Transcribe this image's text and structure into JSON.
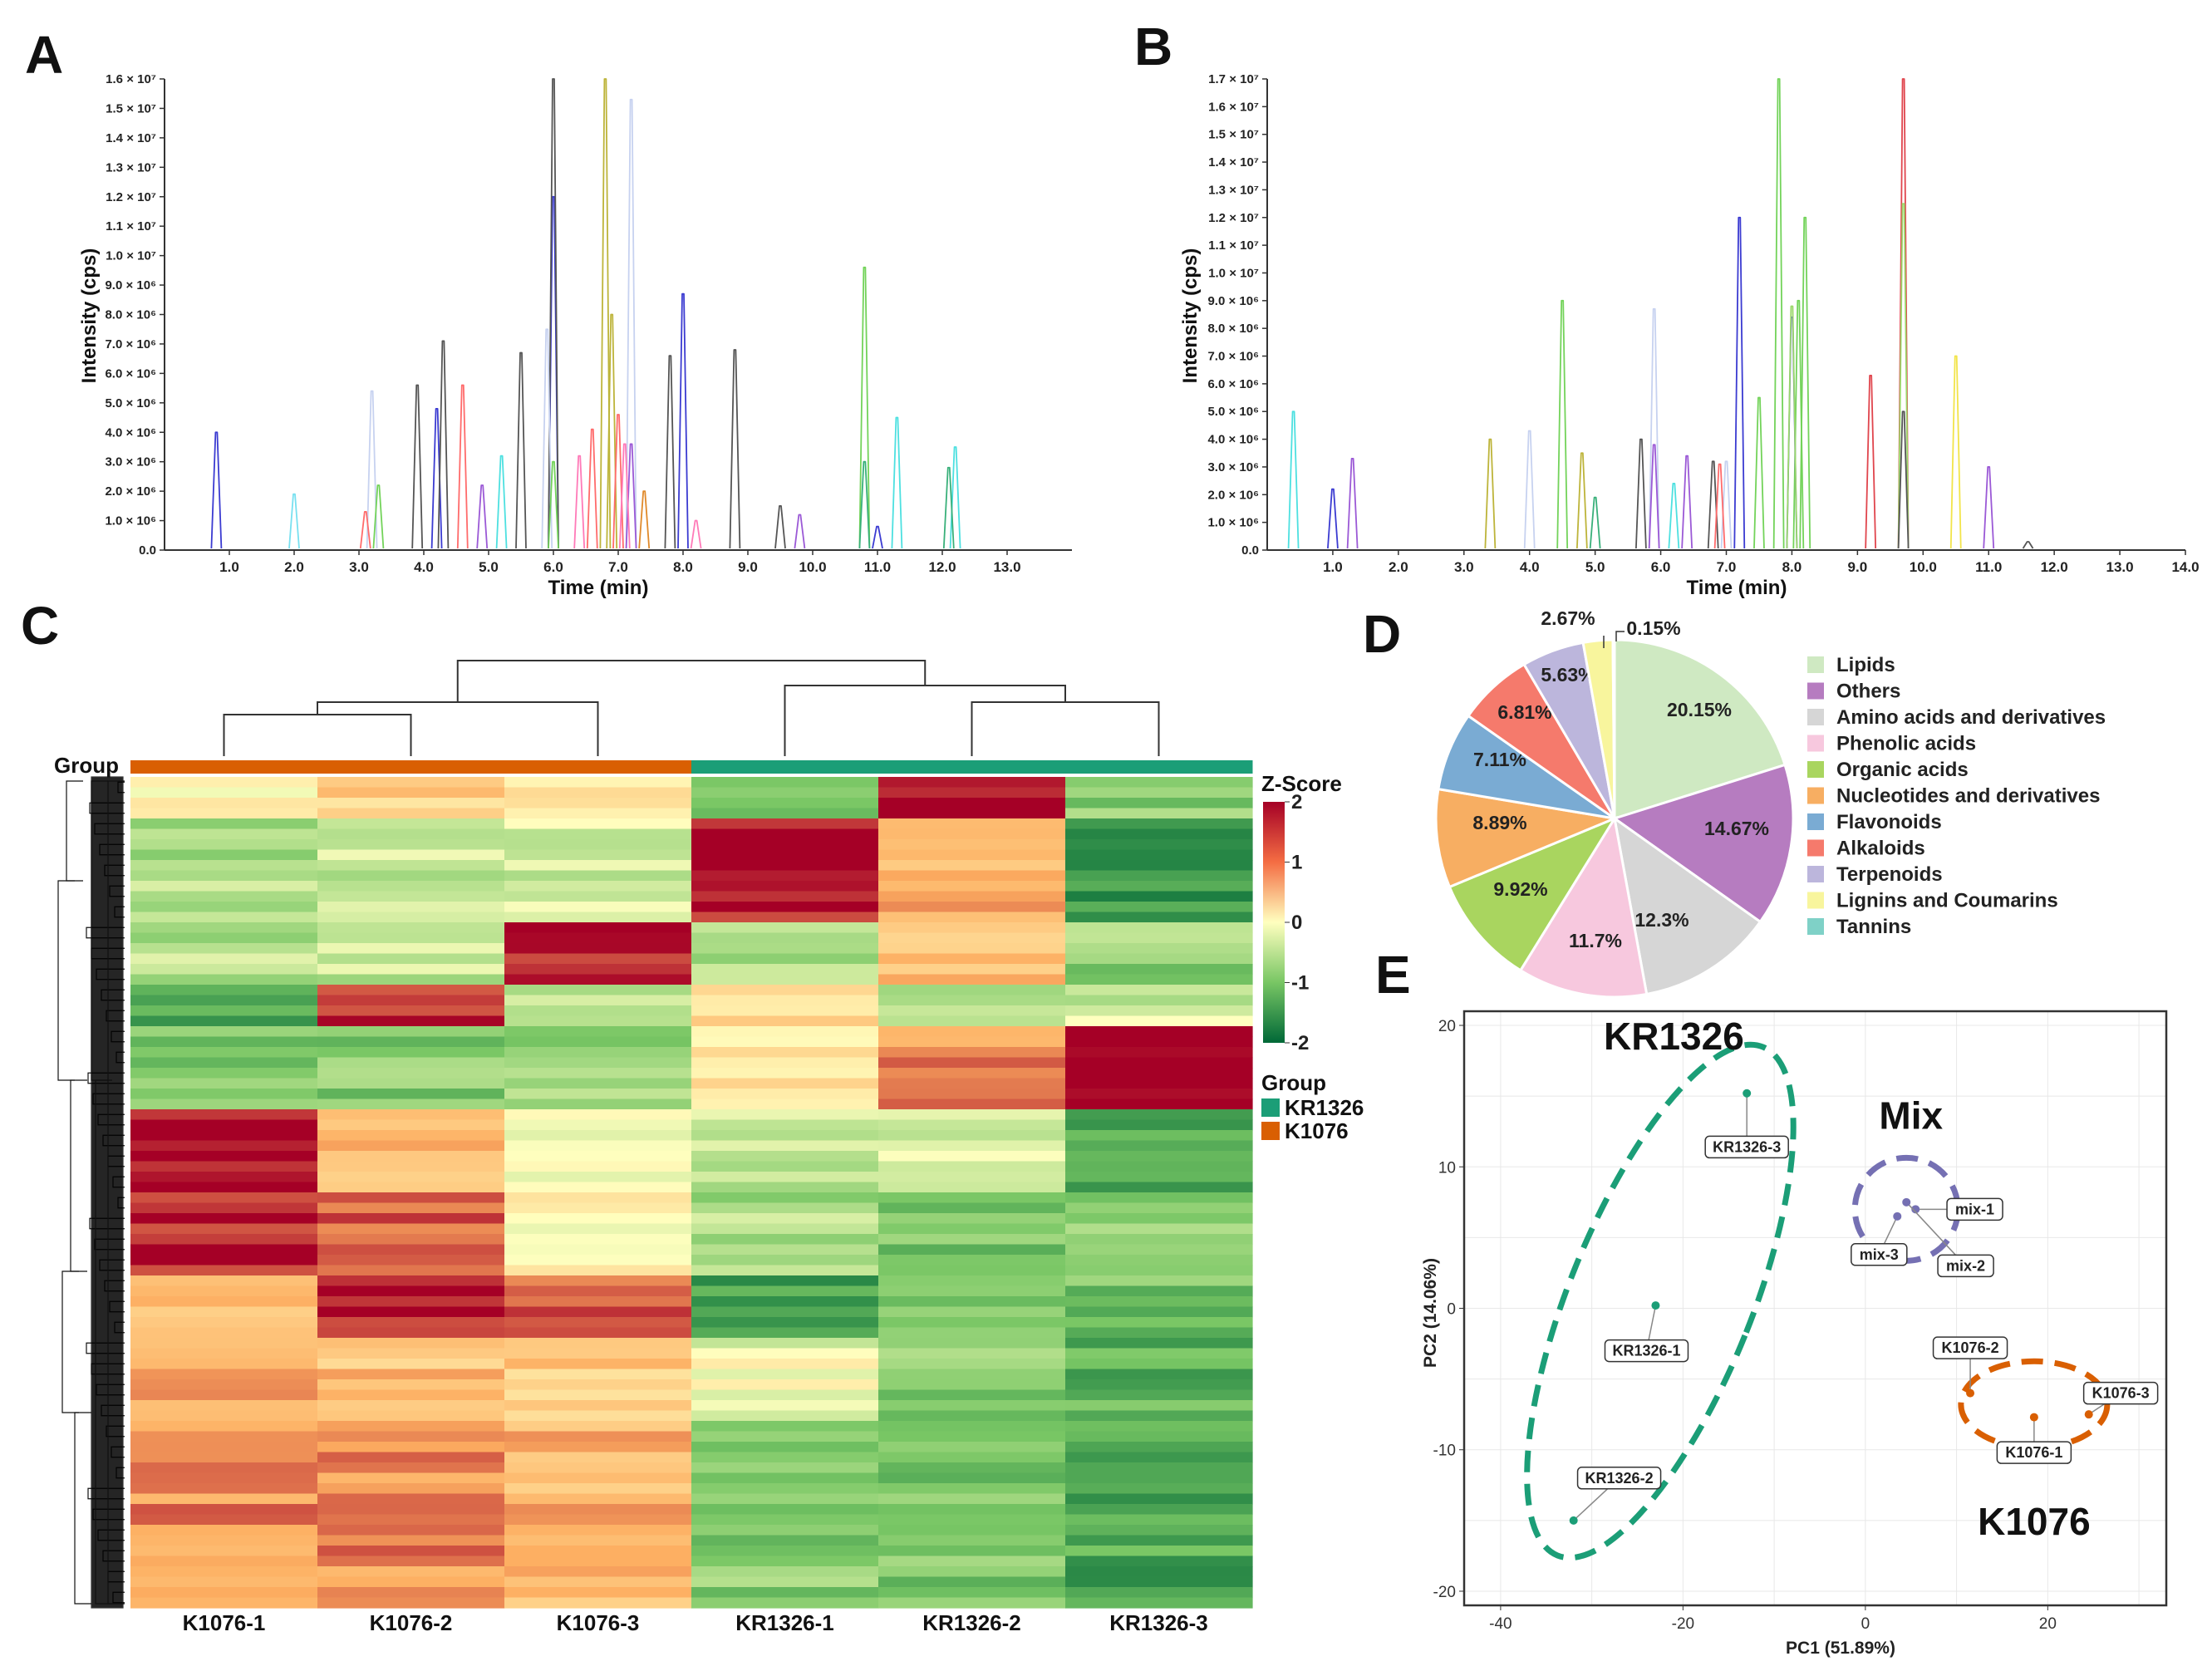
{
  "figure": {
    "panel_letters": [
      "A",
      "B",
      "C",
      "D",
      "E"
    ]
  },
  "chart_data": [
    {
      "id": "A",
      "type": "line",
      "xlabel": "Time (min)",
      "ylabel": "Intensity (cps)",
      "xlim": [
        0,
        14
      ],
      "ylim": [
        0,
        16000000
      ],
      "x_ticks": [
        "1.0",
        "2.0",
        "3.0",
        "4.0",
        "5.0",
        "6.0",
        "7.0",
        "8.0",
        "9.0",
        "10.0",
        "11.0",
        "12.0",
        "13.0"
      ],
      "y_ticks": [
        "0.0",
        "1.0 × 10⁶",
        "2.0 × 10⁶",
        "3.0 × 10⁶",
        "4.0 × 10⁶",
        "5.0 × 10⁶",
        "6.0 × 10⁶",
        "7.0 × 10⁶",
        "8.0 × 10⁶",
        "9.0 × 10⁶",
        "1.0 × 10⁷",
        "1.1 × 10⁷",
        "1.2 × 10⁷",
        "1.3 × 10⁷",
        "1.4 × 10⁷",
        "1.5 × 10⁷",
        "1.6 × 10⁷"
      ],
      "series": [
        {
          "color": "#3b3bd1",
          "x": [
            0.8,
            4.2,
            6.0,
            8.0,
            11.0
          ],
          "y": [
            4.0,
            4.8,
            12.0,
            8.7,
            0.8
          ]
        },
        {
          "color": "#555555",
          "x": [
            3.9,
            4.3,
            5.5,
            6.0,
            7.8,
            8.8,
            9.5
          ],
          "y": [
            5.6,
            7.1,
            6.7,
            16.0,
            6.6,
            6.8,
            1.5
          ]
        },
        {
          "color": "#bdb43a",
          "x": [
            6.8,
            6.9
          ],
          "y": [
            16.0,
            8.0
          ]
        },
        {
          "color": "#c7d2f0",
          "x": [
            7.2,
            3.2,
            5.9
          ],
          "y": [
            15.3,
            5.4,
            7.5
          ]
        },
        {
          "color": "#73d35a",
          "x": [
            10.8,
            3.3,
            6.0
          ],
          "y": [
            9.6,
            2.2,
            3.0
          ]
        },
        {
          "color": "#ff6b6b",
          "x": [
            4.6,
            6.6,
            7.0,
            3.1
          ],
          "y": [
            5.6,
            4.1,
            4.6,
            1.3
          ]
        },
        {
          "color": "#4de0e0",
          "x": [
            11.3,
            5.2,
            12.2
          ],
          "y": [
            4.5,
            3.2,
            3.5
          ]
        },
        {
          "color": "#9b59d6",
          "x": [
            4.9,
            7.2,
            9.8
          ],
          "y": [
            2.2,
            3.6,
            1.2
          ]
        },
        {
          "color": "#ff7ab8",
          "x": [
            7.1,
            8.2,
            6.4
          ],
          "y": [
            3.6,
            1.0,
            3.2
          ]
        },
        {
          "color": "#39b07a",
          "x": [
            12.1,
            10.8
          ],
          "y": [
            2.8,
            3.0
          ]
        },
        {
          "color": "#e08a2b",
          "x": [
            7.4
          ],
          "y": [
            2.0
          ]
        },
        {
          "color": "#78e0f0",
          "x": [
            2.0
          ],
          "y": [
            1.9
          ]
        }
      ]
    },
    {
      "id": "B",
      "type": "line",
      "xlabel": "Time (min)",
      "ylabel": "Intensity (cps)",
      "xlim": [
        0,
        14
      ],
      "ylim": [
        0,
        17000000
      ],
      "x_ticks": [
        "1.0",
        "2.0",
        "3.0",
        "4.0",
        "5.0",
        "6.0",
        "7.0",
        "8.0",
        "9.0",
        "10.0",
        "11.0",
        "12.0",
        "13.0",
        "14.0"
      ],
      "y_ticks": [
        "0.0",
        "1.0 × 10⁶",
        "2.0 × 10⁶",
        "3.0 × 10⁶",
        "4.0 × 10⁶",
        "5.0 × 10⁶",
        "6.0 × 10⁶",
        "7.0 × 10⁶",
        "8.0 × 10⁶",
        "9.0 × 10⁶",
        "1.0 × 10⁷",
        "1.1 × 10⁷",
        "1.2 × 10⁷",
        "1.3 × 10⁷",
        "1.4 × 10⁷",
        "1.5 × 10⁷",
        "1.6 × 10⁷",
        "1.7 × 10⁷"
      ],
      "series": [
        {
          "color": "#73d35a",
          "x": [
            7.8,
            8.1,
            8.2,
            4.5,
            7.5
          ],
          "y": [
            17.0,
            9.0,
            12.0,
            9.0,
            5.5
          ]
        },
        {
          "color": "#e0454d",
          "x": [
            9.7,
            9.2
          ],
          "y": [
            17.0,
            6.3
          ]
        },
        {
          "color": "#3b3bd1",
          "x": [
            7.2,
            8.0,
            1.0
          ],
          "y": [
            12.0,
            8.4,
            2.2
          ]
        },
        {
          "color": "#9bd86b",
          "x": [
            9.7,
            8.0
          ],
          "y": [
            12.5,
            8.8
          ]
        },
        {
          "color": "#c7d2f0",
          "x": [
            5.9,
            4.0,
            7.0
          ],
          "y": [
            8.7,
            4.3,
            3.2
          ]
        },
        {
          "color": "#f2e44a",
          "x": [
            10.5
          ],
          "y": [
            7.0
          ]
        },
        {
          "color": "#4de0e0",
          "x": [
            0.4,
            6.2
          ],
          "y": [
            5.0,
            2.4
          ]
        },
        {
          "color": "#bdb43a",
          "x": [
            3.4,
            4.8
          ],
          "y": [
            4.0,
            3.5
          ]
        },
        {
          "color": "#9b59d6",
          "x": [
            1.3,
            11.0,
            5.9,
            6.4
          ],
          "y": [
            3.3,
            3.0,
            3.8,
            3.4
          ]
        },
        {
          "color": "#555555",
          "x": [
            5.7,
            6.8,
            9.7,
            11.6
          ],
          "y": [
            4.0,
            3.2,
            5.0,
            0.3
          ]
        },
        {
          "color": "#ff6b6b",
          "x": [
            6.9
          ],
          "y": [
            3.1
          ]
        },
        {
          "color": "#39b07a",
          "x": [
            5.0
          ],
          "y": [
            1.9
          ]
        }
      ]
    },
    {
      "id": "C",
      "type": "heatmap",
      "group_label": "Group",
      "columns": [
        "K1076-1",
        "K1076-2",
        "K1076-3",
        "KR1326-1",
        "KR1326-2",
        "KR1326-3"
      ],
      "column_groups": [
        "K1076",
        "K1076",
        "K1076",
        "KR1326",
        "KR1326",
        "KR1326"
      ],
      "colorbar_title": "Z-Score",
      "colorbar_range": [
        -2,
        2
      ],
      "colorbar_ticks": [
        "2",
        "1",
        "0",
        "-1",
        "-2"
      ],
      "legend_title": "Group",
      "legend": [
        {
          "label": "KR1326",
          "color": "#1b9e77"
        },
        {
          "label": "K1076",
          "color": "#d95f02"
        }
      ],
      "row_blocks": [
        {
          "n": 4,
          "values": [
            0.2,
            0.6,
            0.4,
            -0.8,
            1.9,
            -0.9
          ]
        },
        {
          "n": 10,
          "values": [
            -0.6,
            -0.4,
            -0.3,
            1.9,
            0.9,
            -1.5
          ]
        },
        {
          "n": 6,
          "values": [
            -0.5,
            -0.4,
            1.9,
            -0.6,
            0.8,
            -0.8
          ]
        },
        {
          "n": 4,
          "values": [
            -1.2,
            1.8,
            -0.5,
            0.5,
            -0.4,
            -0.3
          ]
        },
        {
          "n": 8,
          "values": [
            -0.9,
            -0.9,
            -0.8,
            0.2,
            1.2,
            2.0
          ]
        },
        {
          "n": 8,
          "values": [
            2.0,
            0.9,
            0.1,
            -0.5,
            -0.3,
            -1.2
          ]
        },
        {
          "n": 8,
          "values": [
            1.8,
            1.4,
            0.1,
            -0.6,
            -1.0,
            -0.9
          ]
        },
        {
          "n": 6,
          "values": [
            0.7,
            1.8,
            1.5,
            -1.4,
            -0.8,
            -1.0
          ]
        },
        {
          "n": 8,
          "values": [
            1.1,
            0.8,
            0.7,
            -0.1,
            -0.9,
            -1.2
          ]
        },
        {
          "n": 18,
          "values": [
            1.2,
            1.2,
            0.9,
            -0.9,
            -0.9,
            -1.3
          ]
        }
      ]
    },
    {
      "id": "D",
      "type": "pie",
      "slices": [
        {
          "label": "Lipids",
          "value": 20.15,
          "display": "20.15%",
          "color": "#cfe9c2"
        },
        {
          "label": "Others",
          "value": 14.67,
          "display": "14.67%",
          "color": "#b67cc0"
        },
        {
          "label": "Amino acids and derivatives",
          "value": 12.3,
          "display": "12.3%",
          "color": "#d6d6d6"
        },
        {
          "label": "Phenolic acids",
          "value": 11.7,
          "display": "11.7%",
          "color": "#f7c8de"
        },
        {
          "label": "Organic acids",
          "value": 9.92,
          "display": "9.92%",
          "color": "#a9d55f"
        },
        {
          "label": "Nucleotides and derivatives",
          "value": 8.89,
          "display": "8.89%",
          "color": "#f7ae62"
        },
        {
          "label": "Flavonoids",
          "value": 7.11,
          "display": "7.11%",
          "color": "#7aabd3"
        },
        {
          "label": "Alkaloids",
          "value": 6.81,
          "display": "6.81%",
          "color": "#f57a6c"
        },
        {
          "label": "Terpenoids",
          "value": 5.63,
          "display": "5.63%",
          "color": "#bcb6dc"
        },
        {
          "label": "Lignins and Coumarins",
          "value": 2.67,
          "display": "2.67%",
          "color": "#f8f59d"
        },
        {
          "label": "Tannins",
          "value": 0.15,
          "display": "0.15%",
          "color": "#7fd1c7"
        }
      ]
    },
    {
      "id": "E",
      "type": "scatter",
      "xlabel": "PC1 (51.89%)",
      "ylabel": "PC2 (14.06%)",
      "xlim": [
        -44,
        33
      ],
      "ylim": [
        -21,
        21
      ],
      "x_ticks": [
        -40,
        -20,
        0,
        20
      ],
      "y_ticks": [
        20,
        10,
        0,
        -10,
        -20
      ],
      "groups": [
        {
          "name": "KR1326",
          "color": "#1b9e77",
          "points": [
            {
              "label": "KR1326-3",
              "x": -13,
              "y": 15.2
            },
            {
              "label": "KR1326-1",
              "x": -23,
              "y": 0.2
            },
            {
              "label": "KR1326-2",
              "x": -32,
              "y": -15
            }
          ]
        },
        {
          "name": "Mix",
          "color": "#7570b3",
          "points": [
            {
              "label": "mix-1",
              "x": 5.5,
              "y": 7.0
            },
            {
              "label": "mix-2",
              "x": 4.5,
              "y": 7.5
            },
            {
              "label": "mix-3",
              "x": 3.5,
              "y": 6.5
            }
          ]
        },
        {
          "name": "K1076",
          "color": "#d95f02",
          "points": [
            {
              "label": "K1076-2",
              "x": 11.5,
              "y": -6.0
            },
            {
              "label": "K1076-3",
              "x": 24.5,
              "y": -7.5
            },
            {
              "label": "K1076-1",
              "x": 18.5,
              "y": -7.7
            }
          ]
        }
      ]
    }
  ]
}
